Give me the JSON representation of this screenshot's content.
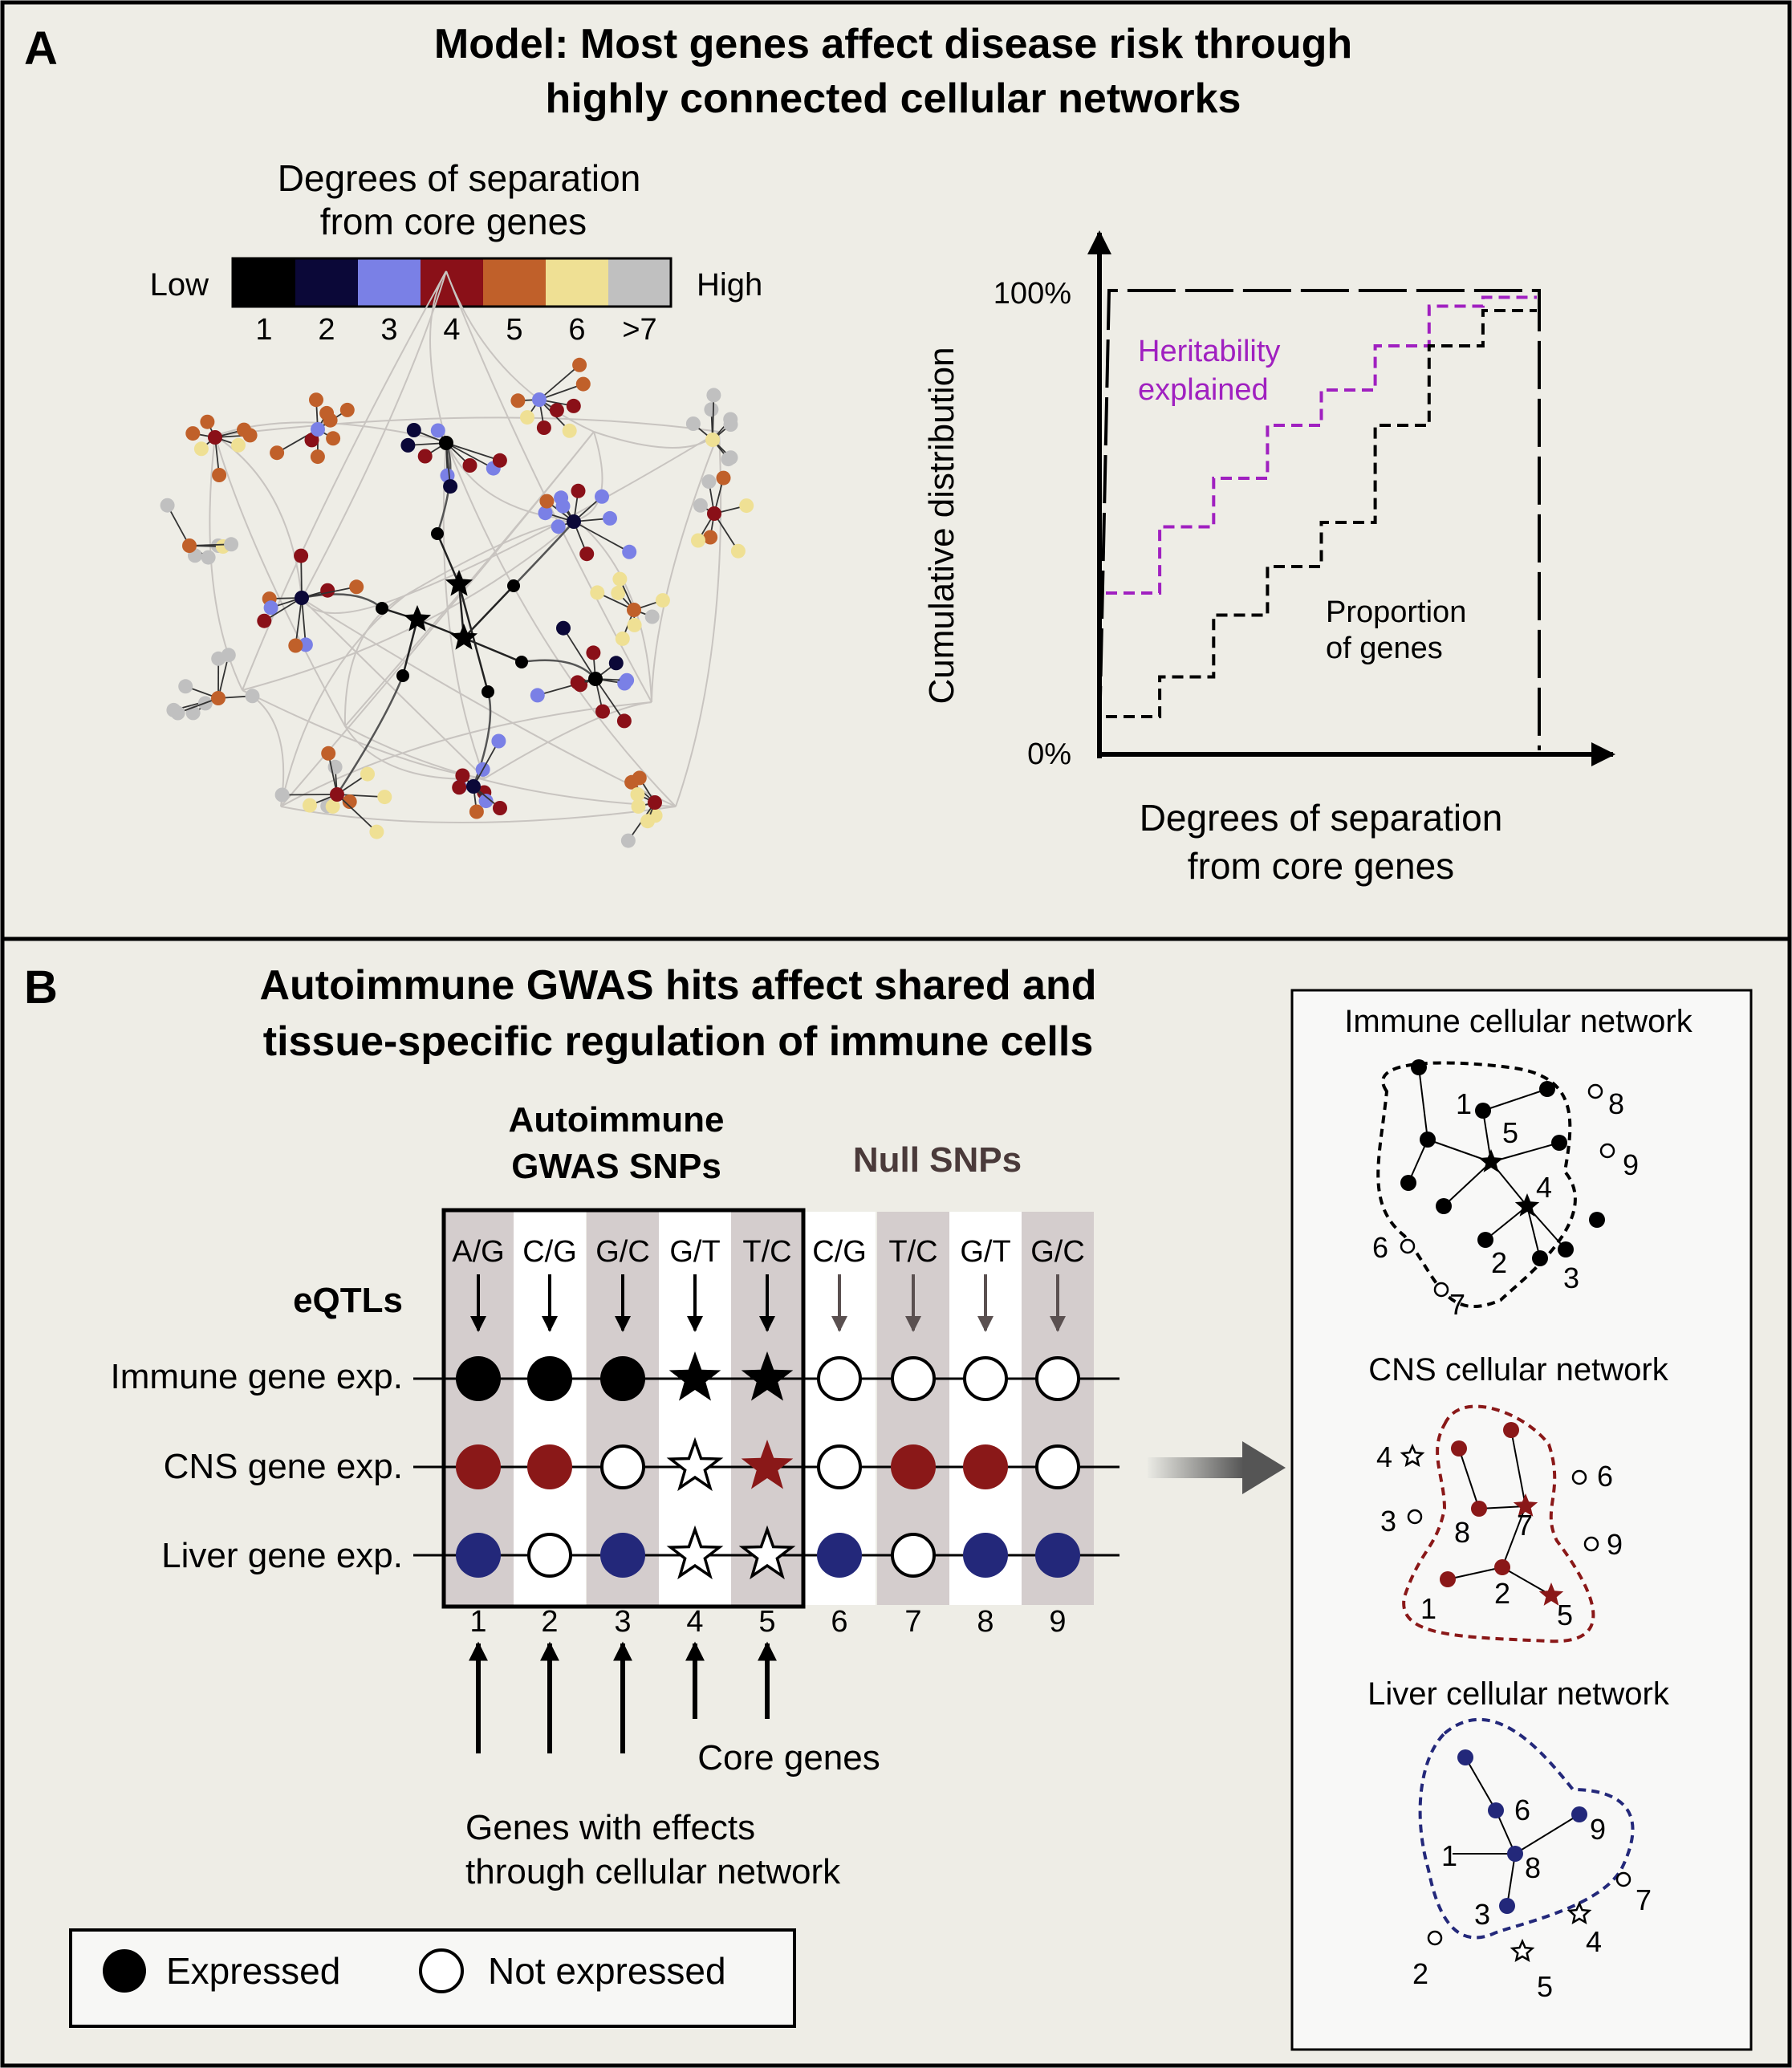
{
  "panel_a": {
    "letter": "A",
    "title_line1": "Model: Most genes affect disease risk through",
    "title_line2": "highly connected cellular networks",
    "colorbar": {
      "title_line1": "Degrees of separation",
      "title_line2": "from core genes",
      "low_label": "Low",
      "high_label": "High",
      "levels": [
        {
          "label": "1",
          "color": "#000000"
        },
        {
          "label": "2",
          "color": "#0b0838"
        },
        {
          "label": "3",
          "color": "#7a80e6"
        },
        {
          "label": "4",
          "color": "#8a1018"
        },
        {
          "label": "5",
          "color": "#c0602a"
        },
        {
          "label": "6",
          "color": "#efe094"
        },
        {
          "label": ">7",
          "color": "#c0c0c0"
        }
      ]
    },
    "chart": {
      "y_axis_label": "Cumulative distribution",
      "x_axis_label_line1": "Degrees of separation",
      "x_axis_label_line2": "from core genes",
      "y_tick_top": "100%",
      "y_tick_bottom": "0%",
      "heritability_label_line1": "Heritability",
      "heritability_label_line2": "explained",
      "proportion_label_line1": "Proportion",
      "proportion_label_line2": "of genes",
      "heritability_color": "#a020c0"
    }
  },
  "chart_data": {
    "type": "line",
    "title": "",
    "xlabel": "Degrees of separation from core genes",
    "ylabel": "Cumulative distribution",
    "ylim": [
      0,
      100
    ],
    "grid": false,
    "series": [
      {
        "name": "Heritability explained",
        "style": "dashed",
        "color": "#a020c0",
        "x": [
          0,
          1,
          2,
          3,
          4,
          5,
          6,
          7
        ],
        "y": [
          32,
          47,
          58,
          70,
          78,
          88,
          97,
          99
        ]
      },
      {
        "name": "Proportion of genes",
        "style": "dashed",
        "color": "#000000",
        "x": [
          0,
          1,
          2,
          3,
          4,
          5,
          6,
          7
        ],
        "y": [
          4,
          13,
          27,
          38,
          48,
          70,
          88,
          96
        ]
      }
    ]
  },
  "panel_b": {
    "letter": "B",
    "title_line1": "Autoimmune GWAS hits affect shared and",
    "title_line2": "tissue-specific regulation of immune cells",
    "gwas_header_line1": "Autoimmune",
    "gwas_header_line2": "GWAS SNPs",
    "null_header": "Null SNPs",
    "eqtl_label": "eQTLs",
    "row_labels": [
      "Immune gene exp.",
      "CNS gene exp.",
      "Liver gene exp."
    ],
    "snps": [
      {
        "num": "1",
        "allele": "A/G",
        "group": "gwas",
        "cells": [
          "filled-circle",
          "filled-circle",
          "filled-circle"
        ]
      },
      {
        "num": "2",
        "allele": "C/G",
        "group": "gwas",
        "cells": [
          "filled-circle",
          "filled-circle",
          "open-circle"
        ]
      },
      {
        "num": "3",
        "allele": "G/C",
        "group": "gwas",
        "cells": [
          "filled-circle",
          "open-circle",
          "filled-circle"
        ]
      },
      {
        "num": "4",
        "allele": "G/T",
        "group": "gwas",
        "cells": [
          "filled-star",
          "open-star",
          "open-star"
        ]
      },
      {
        "num": "5",
        "allele": "T/C",
        "group": "gwas",
        "cells": [
          "filled-star",
          "filled-star",
          "open-star"
        ]
      },
      {
        "num": "6",
        "allele": "C/G",
        "group": "null",
        "cells": [
          "open-circle",
          "open-circle",
          "filled-circle"
        ]
      },
      {
        "num": "7",
        "allele": "T/C",
        "group": "null",
        "cells": [
          "open-circle",
          "filled-circle",
          "open-circle"
        ]
      },
      {
        "num": "8",
        "allele": "G/T",
        "group": "null",
        "cells": [
          "open-circle",
          "filled-circle",
          "filled-circle"
        ]
      },
      {
        "num": "9",
        "allele": "G/C",
        "group": "null",
        "cells": [
          "open-circle",
          "open-circle",
          "filled-circle"
        ]
      }
    ],
    "row_colors": [
      "#000000",
      "#8a1818",
      "#23287a"
    ],
    "core_genes_label": "Core genes",
    "network_genes_label_line1": "Genes with effects",
    "network_genes_label_line2": "through cellular network",
    "legend": {
      "expressed": "Expressed",
      "not_expressed": "Not expressed"
    },
    "networks": [
      {
        "title": "Immune cellular network",
        "labels": [
          "1",
          "2",
          "3",
          "4",
          "5",
          "6",
          "7",
          "8",
          "9"
        ]
      },
      {
        "title": "CNS cellular network",
        "labels": [
          "1",
          "2",
          "3",
          "4",
          "5",
          "6",
          "7",
          "8",
          "9"
        ]
      },
      {
        "title": "Liver cellular network",
        "labels": [
          "1",
          "2",
          "3",
          "4",
          "5",
          "6",
          "7",
          "8",
          "9"
        ]
      }
    ]
  }
}
